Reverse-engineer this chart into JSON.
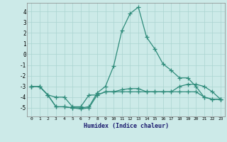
{
  "xlabel": "Humidex (Indice chaleur)",
  "x": [
    0,
    1,
    2,
    3,
    4,
    5,
    6,
    7,
    8,
    9,
    10,
    11,
    12,
    13,
    14,
    15,
    16,
    17,
    18,
    19,
    20,
    21,
    22,
    23
  ],
  "line1": [
    -3.0,
    -3.0,
    -3.8,
    -4.9,
    -4.9,
    -5.0,
    -5.0,
    -4.9,
    -3.6,
    -3.0,
    -1.1,
    2.2,
    3.8,
    4.4,
    1.6,
    0.5,
    -0.9,
    -1.5,
    -2.2,
    -2.2,
    -3.0,
    -4.0,
    -4.2,
    -4.2
  ],
  "line2": [
    -3.0,
    -3.0,
    -3.8,
    -4.9,
    -4.9,
    -5.0,
    -5.1,
    -5.0,
    -3.8,
    -3.5,
    -3.5,
    -3.5,
    -3.5,
    -3.5,
    -3.5,
    -3.5,
    -3.5,
    -3.5,
    -3.5,
    -3.5,
    -3.5,
    -4.0,
    -4.2,
    -4.2
  ],
  "line3": [
    -3.0,
    -3.0,
    -3.8,
    -4.0,
    -4.0,
    -4.9,
    -4.9,
    -3.8,
    -3.8,
    -3.5,
    -3.5,
    -3.3,
    -3.2,
    -3.2,
    -3.5,
    -3.5,
    -3.5,
    -3.5,
    -3.0,
    -2.8,
    -2.8,
    -3.0,
    -3.5,
    -4.2
  ],
  "line_color": "#2e8b7a",
  "bg_color": "#cceae8",
  "grid_color": "#aad4d0",
  "ylim": [
    -5.8,
    4.8
  ],
  "xlim": [
    -0.5,
    23.5
  ],
  "yticks": [
    -5,
    -4,
    -3,
    -2,
    -1,
    0,
    1,
    2,
    3,
    4
  ],
  "xticks": [
    0,
    1,
    2,
    3,
    4,
    5,
    6,
    7,
    8,
    9,
    10,
    11,
    12,
    13,
    14,
    15,
    16,
    17,
    18,
    19,
    20,
    21,
    22,
    23
  ]
}
